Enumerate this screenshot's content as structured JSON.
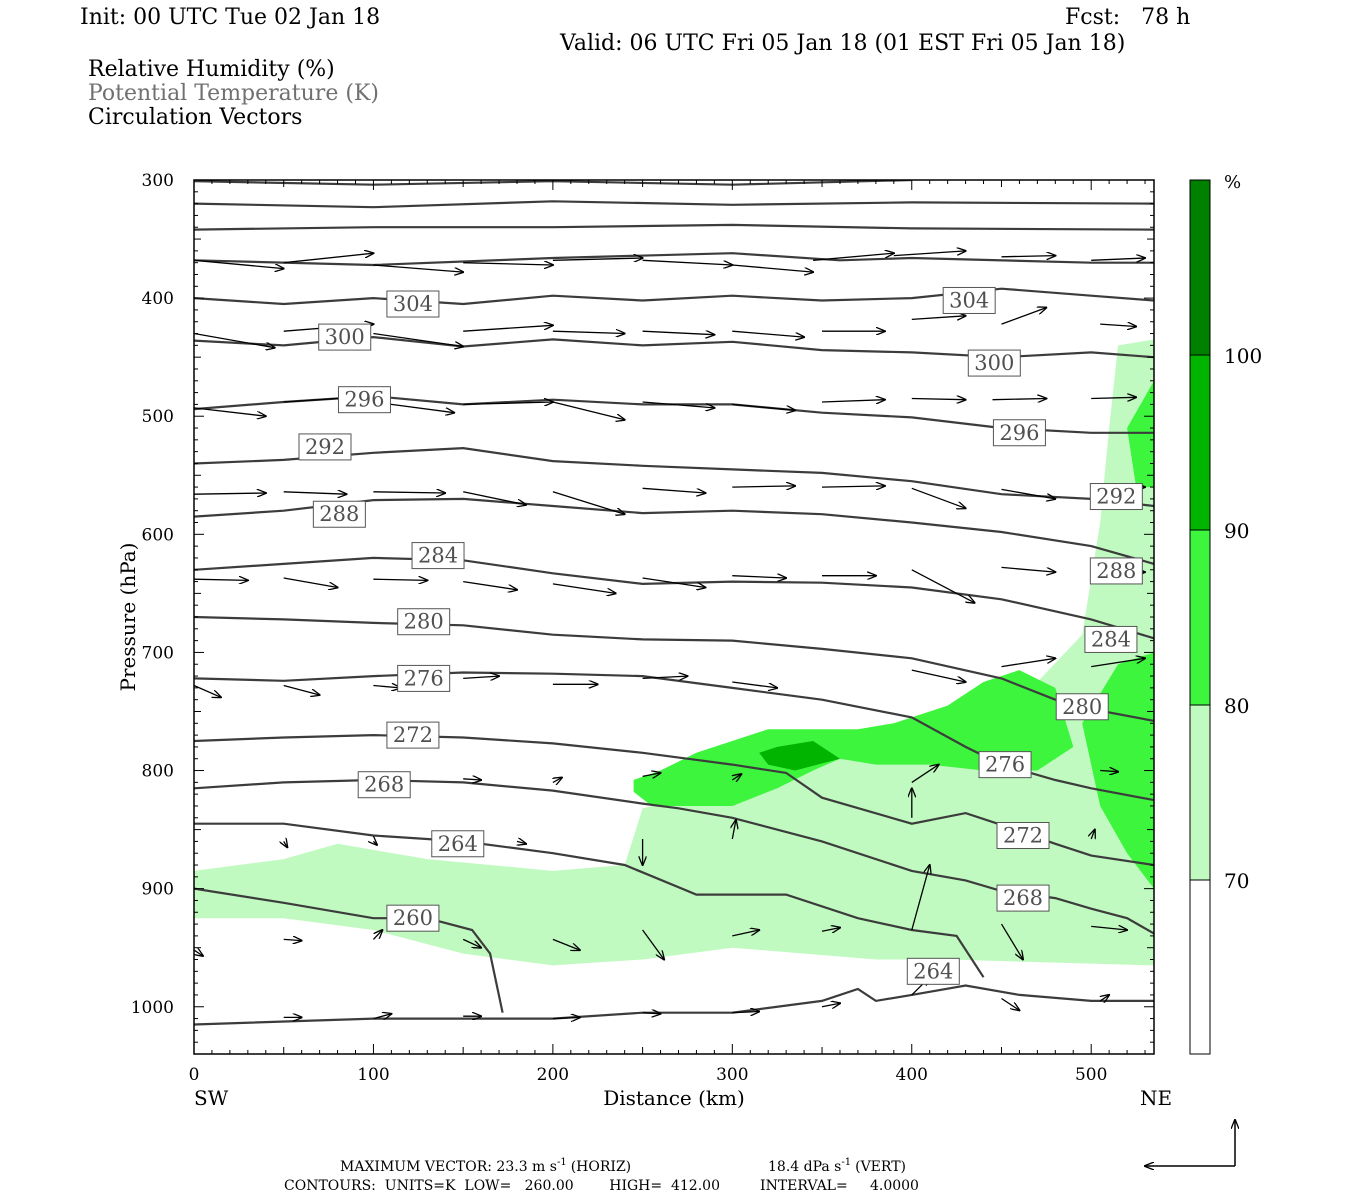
{
  "header": {
    "init": "Init: 00 UTC Tue 02 Jan 18",
    "fcst": "Fcst:   78 h",
    "valid": "Valid: 06 UTC Fri 05 Jan 18 (01 EST Fri 05 Jan 18)"
  },
  "legend_lines": {
    "rh": "Relative Humidity (%)",
    "theta": "Potential Temperature (K)",
    "vectors": "Circulation Vectors"
  },
  "colors": {
    "rh_70_80": "#c0fac0",
    "rh_80_90": "#3cf53c",
    "rh_90_100": "#00b400",
    "rh_100": "#008000",
    "contour": "#3c3c3c"
  },
  "footer": {
    "line1_a": "MAXIMUM VECTOR:  23.3 m s",
    "line1_b": "(HORIZ)",
    "line1_c": "18.4 dPa s",
    "line1_d": "(VERT)",
    "sup": "-1",
    "line2": "CONTOURS:  UNITS=K  LOW=   260.00        HIGH=  412.00         INTERVAL=     4.0000"
  },
  "chart_data": {
    "type": "cross-section",
    "xlabel": "Distance (km)",
    "ylabel": "Pressure (hPa)",
    "xlim": [
      0,
      535
    ],
    "ylim": [
      1040,
      300
    ],
    "x_ticks": [
      0,
      100,
      200,
      300,
      400,
      500
    ],
    "y_ticks": [
      300,
      400,
      500,
      600,
      700,
      800,
      900,
      1000
    ],
    "x_end_labels": {
      "left": "SW",
      "right": "NE"
    },
    "colorbar": {
      "unit": "%",
      "levels": [
        70,
        80,
        90,
        100
      ]
    },
    "theta_contours": [
      {
        "label": "304",
        "points": [
          [
            0,
            400
          ],
          [
            50,
            405
          ],
          [
            100,
            400
          ],
          [
            150,
            405
          ],
          [
            200,
            398
          ],
          [
            250,
            402
          ],
          [
            300,
            398
          ],
          [
            350,
            402
          ],
          [
            400,
            400
          ],
          [
            450,
            392
          ],
          [
            500,
            398
          ],
          [
            535,
            402
          ]
        ],
        "labels_at": [
          [
            122,
            405
          ],
          [
            432,
            402
          ]
        ]
      },
      {
        "label": "300",
        "points": [
          [
            0,
            436
          ],
          [
            50,
            440
          ],
          [
            100,
            433
          ],
          [
            150,
            441
          ],
          [
            200,
            435
          ],
          [
            250,
            440
          ],
          [
            300,
            437
          ],
          [
            350,
            444
          ],
          [
            400,
            446
          ],
          [
            450,
            450
          ],
          [
            500,
            446
          ],
          [
            535,
            450
          ]
        ],
        "labels_at": [
          [
            84,
            433
          ],
          [
            446,
            455
          ]
        ]
      },
      {
        "label": "296",
        "points": [
          [
            0,
            494
          ],
          [
            50,
            488
          ],
          [
            100,
            483
          ],
          [
            150,
            490
          ],
          [
            200,
            486
          ],
          [
            250,
            490
          ],
          [
            300,
            490
          ],
          [
            350,
            497
          ],
          [
            400,
            501
          ],
          [
            450,
            510
          ],
          [
            500,
            514
          ],
          [
            535,
            514
          ]
        ],
        "labels_at": [
          [
            95,
            486
          ],
          [
            460,
            514
          ]
        ]
      },
      {
        "label": "292",
        "points": [
          [
            0,
            540
          ],
          [
            50,
            537
          ],
          [
            100,
            531
          ],
          [
            150,
            527
          ],
          [
            200,
            538
          ],
          [
            250,
            542
          ],
          [
            300,
            545
          ],
          [
            350,
            548
          ],
          [
            400,
            555
          ],
          [
            450,
            566
          ],
          [
            500,
            570
          ],
          [
            535,
            576
          ]
        ],
        "labels_at": [
          [
            73,
            526
          ],
          [
            514,
            568
          ]
        ]
      },
      {
        "label": "288",
        "points": [
          [
            0,
            585
          ],
          [
            50,
            580
          ],
          [
            100,
            571
          ],
          [
            150,
            570
          ],
          [
            200,
            576
          ],
          [
            250,
            582
          ],
          [
            300,
            580
          ],
          [
            350,
            583
          ],
          [
            400,
            590
          ],
          [
            450,
            598
          ],
          [
            500,
            610
          ],
          [
            535,
            625
          ]
        ],
        "labels_at": [
          [
            81,
            583
          ],
          [
            514,
            631
          ]
        ]
      },
      {
        "label": "284",
        "points": [
          [
            0,
            630
          ],
          [
            50,
            625
          ],
          [
            100,
            620
          ],
          [
            150,
            622
          ],
          [
            200,
            633
          ],
          [
            250,
            642
          ],
          [
            300,
            640
          ],
          [
            350,
            641
          ],
          [
            400,
            645
          ],
          [
            450,
            655
          ],
          [
            500,
            672
          ],
          [
            535,
            688
          ]
        ],
        "labels_at": [
          [
            136,
            618
          ],
          [
            511,
            689
          ]
        ]
      },
      {
        "label": "280",
        "points": [
          [
            0,
            670
          ],
          [
            50,
            672
          ],
          [
            100,
            675
          ],
          [
            150,
            677
          ],
          [
            200,
            685
          ],
          [
            250,
            689
          ],
          [
            300,
            690
          ],
          [
            350,
            697
          ],
          [
            400,
            705
          ],
          [
            450,
            722
          ],
          [
            480,
            740
          ],
          [
            500,
            748
          ],
          [
            535,
            758
          ]
        ],
        "labels_at": [
          [
            128,
            674
          ],
          [
            495,
            746
          ]
        ]
      },
      {
        "label": "276",
        "points": [
          [
            0,
            722
          ],
          [
            50,
            724
          ],
          [
            100,
            720
          ],
          [
            150,
            717
          ],
          [
            200,
            718
          ],
          [
            250,
            720
          ],
          [
            300,
            730
          ],
          [
            350,
            740
          ],
          [
            400,
            755
          ],
          [
            430,
            780
          ],
          [
            450,
            795
          ],
          [
            480,
            808
          ],
          [
            500,
            815
          ],
          [
            535,
            825
          ]
        ],
        "labels_at": [
          [
            128,
            722
          ],
          [
            452,
            795
          ]
        ]
      },
      {
        "label": "272",
        "points": [
          [
            0,
            775
          ],
          [
            50,
            772
          ],
          [
            100,
            770
          ],
          [
            150,
            772
          ],
          [
            200,
            777
          ],
          [
            250,
            785
          ],
          [
            300,
            795
          ],
          [
            330,
            802
          ],
          [
            350,
            823
          ],
          [
            400,
            845
          ],
          [
            430,
            836
          ],
          [
            450,
            846
          ],
          [
            480,
            862
          ],
          [
            500,
            872
          ],
          [
            535,
            880
          ]
        ],
        "labels_at": [
          [
            122,
            770
          ],
          [
            462,
            855
          ]
        ]
      },
      {
        "label": "268",
        "points": [
          [
            0,
            815
          ],
          [
            50,
            810
          ],
          [
            100,
            808
          ],
          [
            150,
            810
          ],
          [
            200,
            817
          ],
          [
            250,
            828
          ],
          [
            270,
            832
          ],
          [
            300,
            840
          ],
          [
            350,
            860
          ],
          [
            400,
            885
          ],
          [
            430,
            893
          ],
          [
            450,
            902
          ],
          [
            480,
            908
          ],
          [
            500,
            917
          ],
          [
            520,
            925
          ],
          [
            535,
            938
          ]
        ],
        "labels_at": [
          [
            106,
            812
          ],
          [
            462,
            908
          ]
        ]
      },
      {
        "label": "264",
        "points": [
          [
            0,
            845
          ],
          [
            50,
            845
          ],
          [
            100,
            855
          ],
          [
            150,
            860
          ],
          [
            200,
            870
          ],
          [
            240,
            880
          ],
          [
            280,
            905
          ],
          [
            330,
            905
          ],
          [
            370,
            925
          ],
          [
            400,
            935
          ],
          [
            425,
            940
          ],
          [
            440,
            975
          ]
        ],
        "labels_at": [
          [
            147,
            862
          ],
          [
            412,
            970
          ]
        ]
      },
      {
        "label": "260",
        "points": [
          [
            0,
            900
          ],
          [
            50,
            912
          ],
          [
            100,
            925
          ],
          [
            130,
            925
          ],
          [
            155,
            935
          ],
          [
            165,
            955
          ],
          [
            172,
            1005
          ]
        ],
        "labels_at": [
          [
            122,
            925
          ]
        ]
      },
      {
        "label": "",
        "points": [
          [
            0,
            1015
          ],
          [
            100,
            1010
          ],
          [
            200,
            1010
          ],
          [
            250,
            1005
          ],
          [
            300,
            1005
          ],
          [
            350,
            995
          ],
          [
            370,
            985
          ],
          [
            380,
            995
          ],
          [
            400,
            990
          ],
          [
            430,
            982
          ],
          [
            460,
            990
          ],
          [
            500,
            995
          ],
          [
            535,
            995
          ]
        ],
        "labels_at": []
      },
      {
        "label": "",
        "points": [
          [
            0,
            368
          ],
          [
            100,
            372
          ],
          [
            200,
            366
          ],
          [
            300,
            362
          ],
          [
            360,
            368
          ],
          [
            400,
            366
          ],
          [
            500,
            370
          ],
          [
            535,
            370
          ]
        ],
        "labels_at": []
      },
      {
        "label": "",
        "points": [
          [
            0,
            342
          ],
          [
            100,
            340
          ],
          [
            200,
            340
          ],
          [
            300,
            338
          ],
          [
            400,
            341
          ],
          [
            535,
            342
          ]
        ],
        "labels_at": []
      },
      {
        "label": "",
        "points": [
          [
            0,
            320
          ],
          [
            100,
            323
          ],
          [
            200,
            318
          ],
          [
            300,
            321
          ],
          [
            400,
            319
          ],
          [
            535,
            320
          ]
        ],
        "labels_at": []
      },
      {
        "label": "",
        "points": [
          [
            0,
            301
          ],
          [
            100,
            304
          ],
          [
            200,
            301
          ],
          [
            300,
            304
          ],
          [
            400,
            300
          ]
        ],
        "labels_at": []
      }
    ],
    "rh_regions": [
      {
        "level": "70",
        "points": [
          [
            0,
            885
          ],
          [
            50,
            875
          ],
          [
            80,
            862
          ],
          [
            130,
            875
          ],
          [
            200,
            885
          ],
          [
            240,
            880
          ],
          [
            250,
            832
          ],
          [
            280,
            822
          ],
          [
            330,
            800
          ],
          [
            380,
            780
          ],
          [
            430,
            752
          ],
          [
            470,
            725
          ],
          [
            495,
            685
          ],
          [
            505,
            590
          ],
          [
            510,
            510
          ],
          [
            515,
            440
          ],
          [
            535,
            435
          ],
          [
            535,
            965
          ],
          [
            420,
            960
          ],
          [
            380,
            960
          ],
          [
            300,
            950
          ],
          [
            250,
            960
          ],
          [
            200,
            965
          ],
          [
            150,
            955
          ],
          [
            100,
            935
          ],
          [
            50,
            925
          ],
          [
            0,
            925
          ]
        ]
      },
      {
        "level": "80",
        "points": [
          [
            245,
            808
          ],
          [
            260,
            800
          ],
          [
            280,
            785
          ],
          [
            300,
            775
          ],
          [
            320,
            765
          ],
          [
            350,
            765
          ],
          [
            370,
            765
          ],
          [
            390,
            760
          ],
          [
            420,
            745
          ],
          [
            440,
            725
          ],
          [
            460,
            715
          ],
          [
            480,
            730
          ],
          [
            490,
            780
          ],
          [
            470,
            800
          ],
          [
            440,
            800
          ],
          [
            410,
            795
          ],
          [
            380,
            795
          ],
          [
            360,
            790
          ],
          [
            345,
            800
          ],
          [
            325,
            815
          ],
          [
            300,
            830
          ],
          [
            270,
            830
          ],
          [
            255,
            830
          ],
          [
            245,
            818
          ]
        ]
      },
      {
        "level": "80",
        "points": [
          [
            495,
            760
          ],
          [
            515,
            710
          ],
          [
            535,
            700
          ],
          [
            535,
            900
          ],
          [
            520,
            870
          ],
          [
            505,
            830
          ]
        ]
      },
      {
        "level": "80",
        "points": [
          [
            520,
            510
          ],
          [
            535,
            470
          ],
          [
            535,
            560
          ],
          [
            525,
            560
          ]
        ]
      },
      {
        "level": "90",
        "points": [
          [
            315,
            785
          ],
          [
            325,
            780
          ],
          [
            345,
            775
          ],
          [
            360,
            790
          ],
          [
            335,
            800
          ],
          [
            320,
            795
          ]
        ]
      }
    ],
    "vectors_note": "circulation vectors drawn as arrows along the section"
  }
}
